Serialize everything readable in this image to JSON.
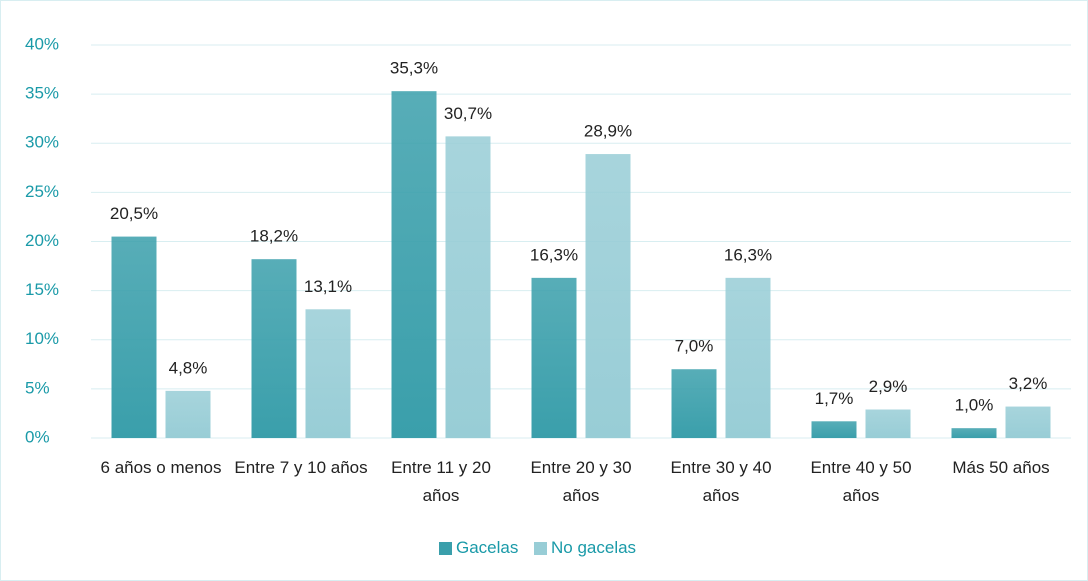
{
  "chart_data": {
    "type": "bar",
    "categories": [
      "6 años o menos",
      "Entre 7 y 10 años",
      "Entre 11 y 20 años",
      "Entre 20 y 30 años",
      "Entre 30 y 40 años",
      "Entre 40 y 50 años",
      "Más 50 años"
    ],
    "series": [
      {
        "name": "Gacelas",
        "color": "#3a9fab",
        "values": [
          20.5,
          18.2,
          35.3,
          16.3,
          7.0,
          1.7,
          1.0
        ],
        "value_labels": [
          "20,5%",
          "18,2%",
          "35,3%",
          "16,3%",
          "7,0%",
          "1,7%",
          "1,0%"
        ]
      },
      {
        "name": "No gacelas",
        "color": "#98cdd6",
        "values": [
          4.8,
          13.1,
          30.7,
          28.9,
          16.3,
          2.9,
          3.2
        ],
        "value_labels": [
          "4,8%",
          "13,1%",
          "30,7%",
          "28,9%",
          "16,3%",
          "2,9%",
          "3,2%"
        ]
      }
    ],
    "ylim": [
      0,
      40
    ],
    "yticks": [
      {
        "value": 0,
        "label": "0%"
      },
      {
        "value": 5,
        "label": "5%"
      },
      {
        "value": 10,
        "label": "10%"
      },
      {
        "value": 15,
        "label": "15%"
      },
      {
        "value": 20,
        "label": "20%"
      },
      {
        "value": 25,
        "label": "25%"
      },
      {
        "value": 30,
        "label": "30%"
      },
      {
        "value": 35,
        "label": "35%"
      },
      {
        "value": 40,
        "label": "40%"
      }
    ],
    "grid": true,
    "legend": "bottom"
  }
}
